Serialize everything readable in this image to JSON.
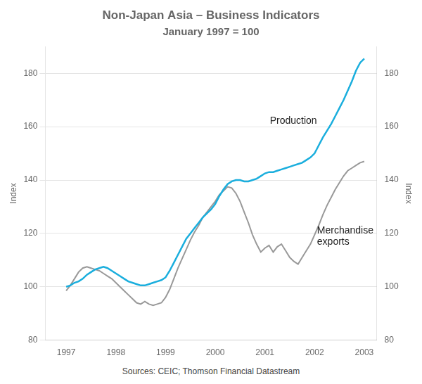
{
  "chart_data": {
    "type": "line",
    "title": "Non-Japan Asia – Business Indicators",
    "subtitle": "January 1997 = 100",
    "source": "Sources: CEIC; Thomson Financial Datastream",
    "y_label": "Index",
    "y2_label": "Index",
    "xlim": [
      1996.58,
      2003.25
    ],
    "xticks": [
      1997,
      1998,
      1999,
      2000,
      2001,
      2002,
      2003
    ],
    "ylim": [
      80,
      190
    ],
    "yticks": [
      80,
      100,
      120,
      140,
      160,
      180
    ],
    "y2lim": [
      80,
      190
    ],
    "y2ticks": [
      80,
      100,
      120,
      140,
      160,
      180
    ],
    "grid": "y",
    "x": [
      1997.0,
      1997.083,
      1997.167,
      1997.25,
      1997.333,
      1997.417,
      1997.5,
      1997.583,
      1997.667,
      1997.75,
      1997.833,
      1997.917,
      1998.0,
      1998.083,
      1998.167,
      1998.25,
      1998.333,
      1998.417,
      1998.5,
      1998.583,
      1998.667,
      1998.75,
      1998.833,
      1998.917,
      1999.0,
      1999.083,
      1999.167,
      1999.25,
      1999.333,
      1999.417,
      1999.5,
      1999.583,
      1999.667,
      1999.75,
      1999.833,
      1999.917,
      2000.0,
      2000.083,
      2000.167,
      2000.25,
      2000.333,
      2000.417,
      2000.5,
      2000.583,
      2000.667,
      2000.75,
      2000.833,
      2000.917,
      2001.0,
      2001.083,
      2001.167,
      2001.25,
      2001.333,
      2001.417,
      2001.5,
      2001.583,
      2001.667,
      2001.75,
      2001.833,
      2001.917,
      2002.0,
      2002.083,
      2002.167,
      2002.25,
      2002.333,
      2002.417,
      2002.5,
      2002.583,
      2002.667,
      2002.75,
      2002.833,
      2002.917,
      2003.0
    ],
    "series": [
      {
        "name": "Production",
        "color": "#1aaedd",
        "values": [
          100.0,
          100.5,
          101.5,
          102.0,
          103.0,
          104.5,
          105.5,
          106.5,
          107.0,
          107.5,
          107.0,
          106.0,
          105.0,
          104.0,
          103.0,
          102.0,
          101.5,
          101.0,
          100.5,
          100.5,
          101.0,
          101.5,
          102.0,
          102.5,
          103.5,
          106.0,
          109.0,
          112.0,
          115.0,
          118.0,
          120.0,
          122.0,
          124.0,
          126.0,
          127.5,
          129.0,
          131.0,
          134.0,
          136.5,
          138.5,
          139.5,
          140.0,
          140.0,
          139.5,
          139.5,
          140.0,
          140.5,
          141.5,
          142.5,
          143.0,
          143.0,
          143.5,
          144.0,
          144.5,
          145.0,
          145.5,
          146.0,
          146.5,
          147.5,
          148.5,
          150.0,
          153.0,
          156.0,
          158.5,
          161.0,
          164.0,
          167.0,
          170.0,
          173.5,
          177.0,
          181.0,
          184.0,
          185.5
        ]
      },
      {
        "name": "Merchandise\nexports",
        "color": "#999999",
        "values": [
          98.5,
          100.5,
          103.0,
          105.5,
          107.0,
          107.5,
          107.0,
          106.5,
          106.0,
          105.0,
          104.0,
          103.0,
          101.5,
          100.0,
          98.5,
          97.0,
          95.5,
          94.0,
          93.5,
          94.5,
          93.5,
          93.0,
          93.5,
          94.0,
          96.0,
          99.0,
          103.0,
          107.0,
          110.5,
          114.0,
          117.5,
          120.5,
          123.0,
          126.0,
          128.0,
          130.0,
          132.0,
          134.5,
          136.0,
          137.5,
          137.0,
          135.0,
          132.0,
          128.0,
          124.0,
          119.5,
          116.0,
          113.0,
          114.5,
          115.5,
          113.0,
          115.0,
          116.0,
          113.5,
          111.0,
          109.5,
          108.5,
          111.0,
          113.5,
          116.0,
          119.5,
          123.0,
          127.0,
          130.5,
          133.5,
          136.5,
          139.0,
          141.5,
          143.5,
          144.5,
          145.5,
          146.5,
          147.0
        ]
      }
    ],
    "annotations": [
      {
        "text": "Production",
        "x": 2001.1,
        "y": 162
      },
      {
        "text": "Merchandise\nexports",
        "x": 2002.05,
        "y": 119
      }
    ]
  }
}
